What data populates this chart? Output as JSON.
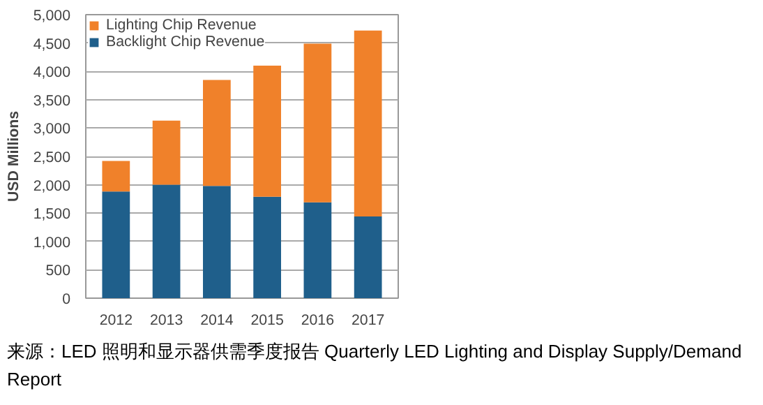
{
  "chart_data": {
    "type": "bar",
    "stacked": true,
    "ylabel": "USD Millions",
    "categories": [
      "2012",
      "2013",
      "2014",
      "2015",
      "2016",
      "2017"
    ],
    "series": [
      {
        "name": "Backlight Chip Revenue",
        "color": "#1f5f8b",
        "values": [
          1880,
          2000,
          1980,
          1790,
          1690,
          1440
        ]
      },
      {
        "name": "Lighting Chip Revenue",
        "color": "#f0812a",
        "values": [
          540,
          1130,
          1870,
          2310,
          2800,
          3280
        ]
      }
    ],
    "ylim": [
      0,
      5000
    ],
    "yticks": [
      {
        "value": 0,
        "label": "0"
      },
      {
        "value": 500,
        "label": "500"
      },
      {
        "value": 1000,
        "label": "1,000"
      },
      {
        "value": 1500,
        "label": "1,500"
      },
      {
        "value": 2000,
        "label": "2,000"
      },
      {
        "value": 2500,
        "label": "2,500"
      },
      {
        "value": 3000,
        "label": "3,000"
      },
      {
        "value": 3500,
        "label": "3,500"
      },
      {
        "value": 4000,
        "label": "4,000"
      },
      {
        "value": 4500,
        "label": "4,500"
      },
      {
        "value": 5000,
        "label": "5,000"
      }
    ],
    "grid": "y",
    "legend": "top left",
    "annotations": [
      "来源：LED 照明和显示器供需季度报告 Quarterly LED Lighting and Display Supply/Demand Report"
    ]
  }
}
